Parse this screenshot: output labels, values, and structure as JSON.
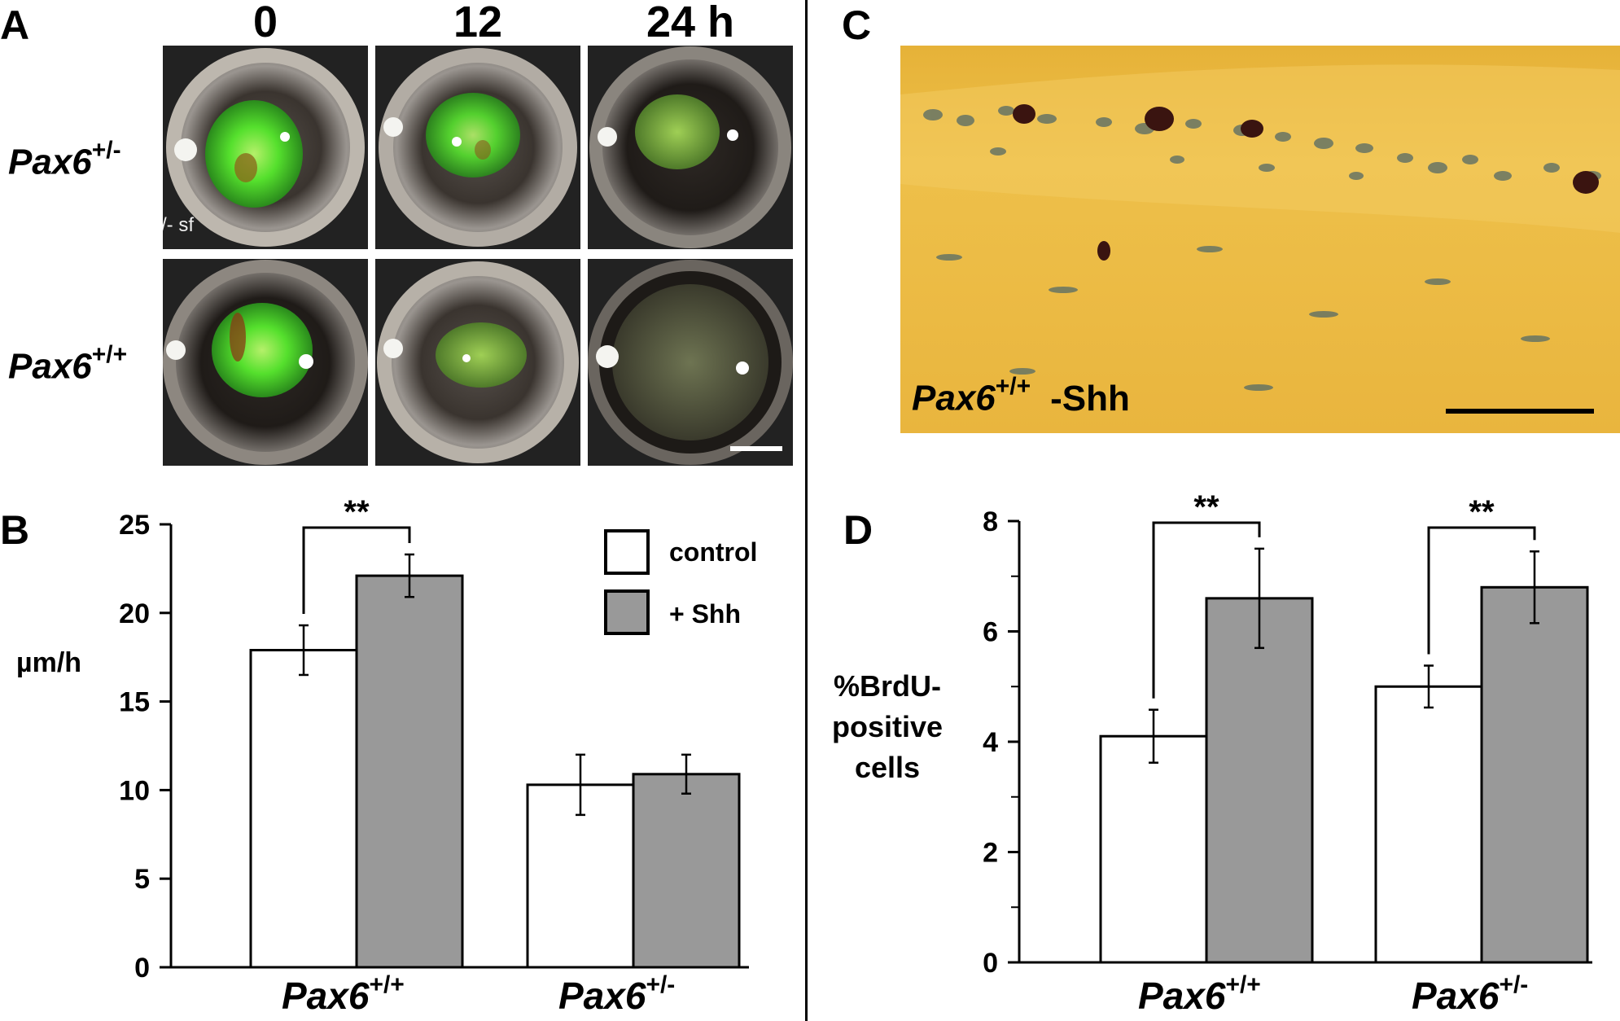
{
  "panelA": {
    "letter": "A",
    "columns": [
      "0",
      "12",
      "24 h"
    ],
    "rows": [
      {
        "gene": "Pax6",
        "sup": "+/-"
      },
      {
        "gene": "Pax6",
        "sup": "+/+"
      }
    ],
    "image_text": "/- sf",
    "colors": {
      "fluorescein": "#3ddc2a",
      "cornea_dark": "#1e1a18"
    }
  },
  "panelB": {
    "letter": "B",
    "legend": [
      {
        "label": "control",
        "color": "#ffffff"
      },
      {
        "label": "+ Shh",
        "color": "#999999"
      }
    ],
    "chart_data": {
      "type": "bar",
      "ylabel": "µm/h",
      "ylim": [
        0,
        25
      ],
      "yticks": [
        "0",
        "5",
        "10",
        "15",
        "20",
        "25"
      ],
      "groups": [
        {
          "gene": "Pax6",
          "sup": "+/+",
          "values": [
            17.9,
            22.1
          ],
          "errors": [
            1.4,
            1.2
          ],
          "sig": "**"
        },
        {
          "gene": "Pax6",
          "sup": "+/-",
          "values": [
            10.3,
            10.9
          ],
          "errors": [
            1.7,
            1.1
          ],
          "sig": ""
        }
      ],
      "series_colors": [
        "#ffffff",
        "#999999"
      ]
    }
  },
  "panelC": {
    "letter": "C",
    "label_gene": "Pax6",
    "label_sup": "+/+",
    "label_suffix": "-Shh",
    "colors": {
      "background": "#e8b43a",
      "nuclei": "#5a6b62",
      "brdu": "#3a1410"
    }
  },
  "panelD": {
    "letter": "D",
    "chart_data": {
      "type": "bar",
      "ylabel_lines": [
        "%BrdU-",
        "positive",
        "cells"
      ],
      "ylim": [
        0,
        8
      ],
      "yticks": [
        "0",
        "2",
        "4",
        "6",
        "8"
      ],
      "groups": [
        {
          "gene": "Pax6",
          "sup": "+/+",
          "values": [
            4.1,
            6.6
          ],
          "errors": [
            0.48,
            0.9
          ],
          "sig": "**"
        },
        {
          "gene": "Pax6",
          "sup": "+/-",
          "values": [
            5.0,
            6.8
          ],
          "errors": [
            0.38,
            0.65
          ],
          "sig": "**"
        }
      ],
      "series_colors": [
        "#ffffff",
        "#999999"
      ]
    }
  }
}
